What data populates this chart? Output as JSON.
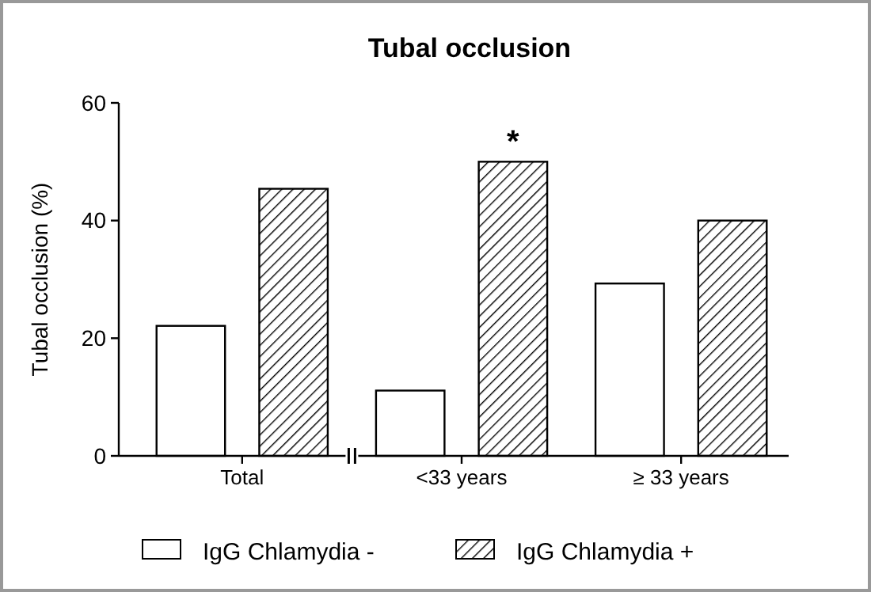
{
  "chart_data": {
    "type": "bar",
    "title": "Tubal occlusion",
    "ylabel": "Tubal occlusion (%)",
    "categories": [
      "Total",
      "<33 years",
      "≥ 33 years"
    ],
    "series": [
      {
        "name": "IgG Chlamydia -",
        "color": "#ffffff",
        "values": [
          22.1,
          11.1,
          29.3
        ]
      },
      {
        "name": "IgG Chlamydia +",
        "color": "#000000",
        "values": [
          45.4,
          50,
          40
        ]
      }
    ],
    "ylim": [
      0,
      60
    ],
    "yticks": [
      0,
      20,
      40,
      60
    ],
    "grid": false,
    "legend": "bottom",
    "annotations": [
      "*"
    ]
  }
}
